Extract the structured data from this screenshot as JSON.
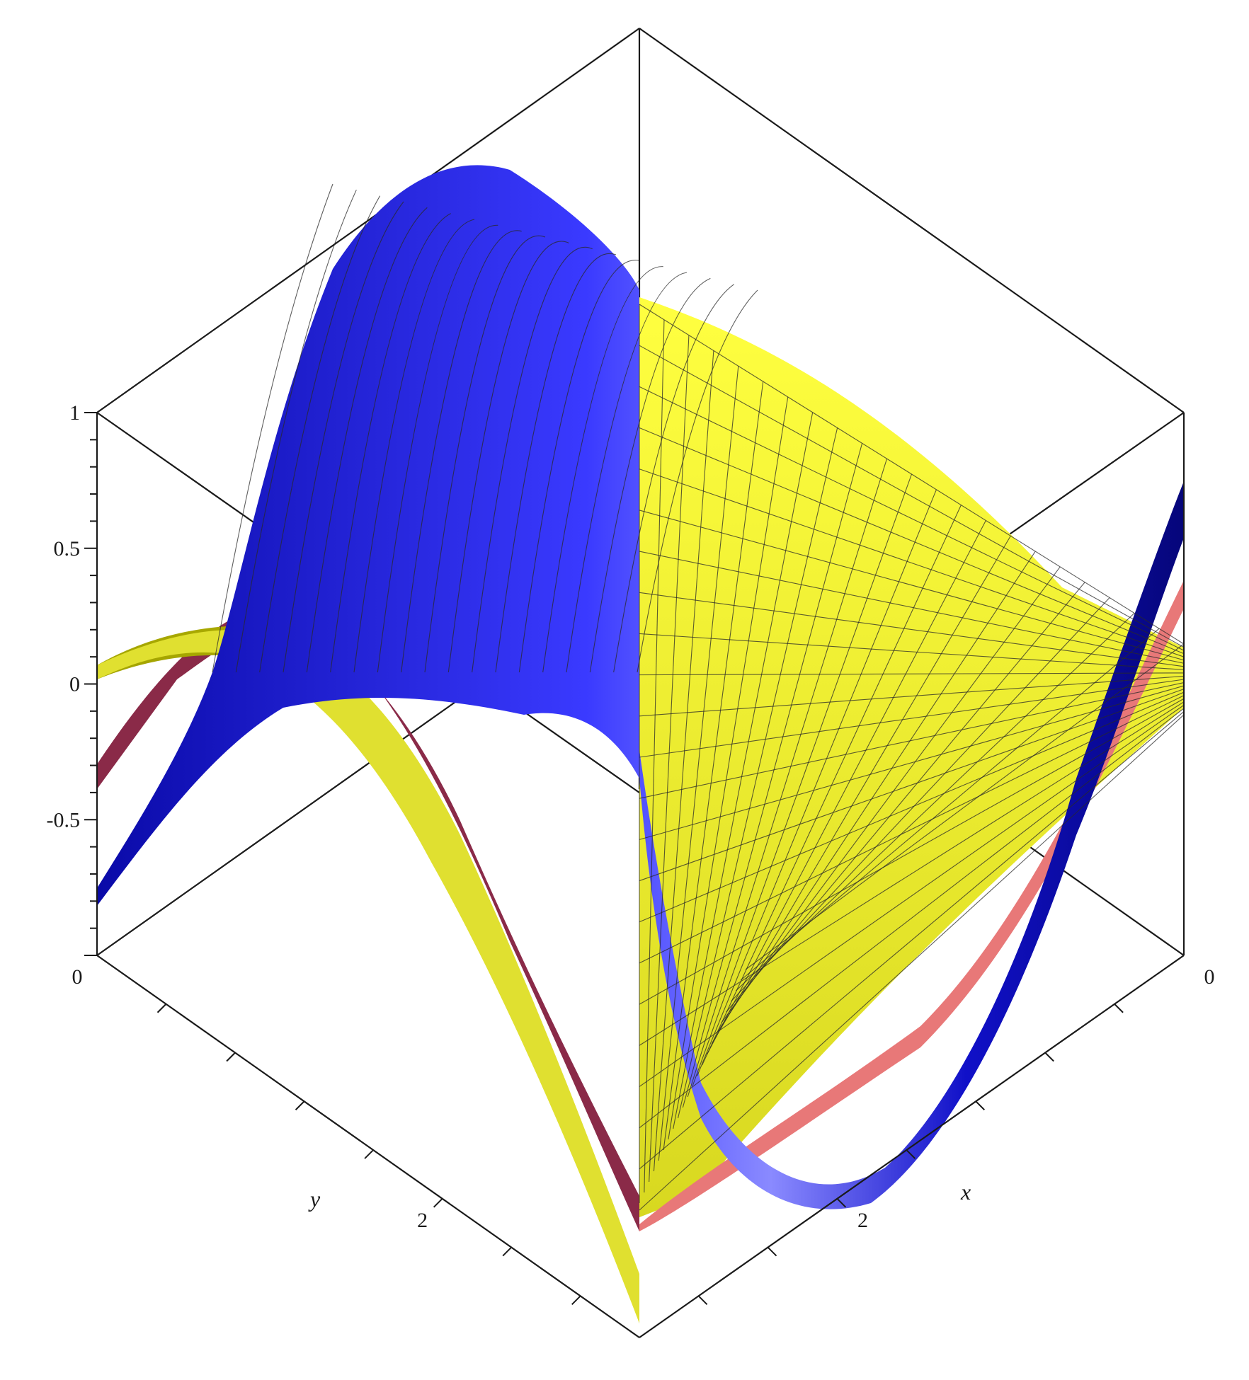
{
  "chart_data": {
    "type": "surface3d",
    "title": "",
    "xlabel": "x",
    "ylabel": "y",
    "zlabel": "",
    "x_range": [
      0,
      3.14159
    ],
    "y_range": [
      0,
      3.14159
    ],
    "zlim": [
      -1,
      1
    ],
    "grid": false,
    "legend": "none",
    "z_ticks": [
      {
        "value": 1,
        "label": "1"
      },
      {
        "value": 0.5,
        "label": "0.5"
      },
      {
        "value": 0,
        "label": "0"
      },
      {
        "value": -0.5,
        "label": "-0.5"
      }
    ],
    "x_ticks": [
      {
        "value": 0,
        "label": "0"
      },
      {
        "value": 2,
        "label": "2"
      }
    ],
    "y_ticks": [
      {
        "value": 0,
        "label": "0"
      },
      {
        "value": 2,
        "label": "2"
      }
    ],
    "series": [
      {
        "color": "#1414e6",
        "description_key": "blue",
        "peak": 1.0,
        "trough": -0.9
      },
      {
        "color": "#e87878",
        "description_key": "pink",
        "peak": 0.4,
        "trough": -0.4
      },
      {
        "color": "#ffff33",
        "description_key": "yellow",
        "peak": 0.35,
        "trough": -1.0
      }
    ]
  }
}
